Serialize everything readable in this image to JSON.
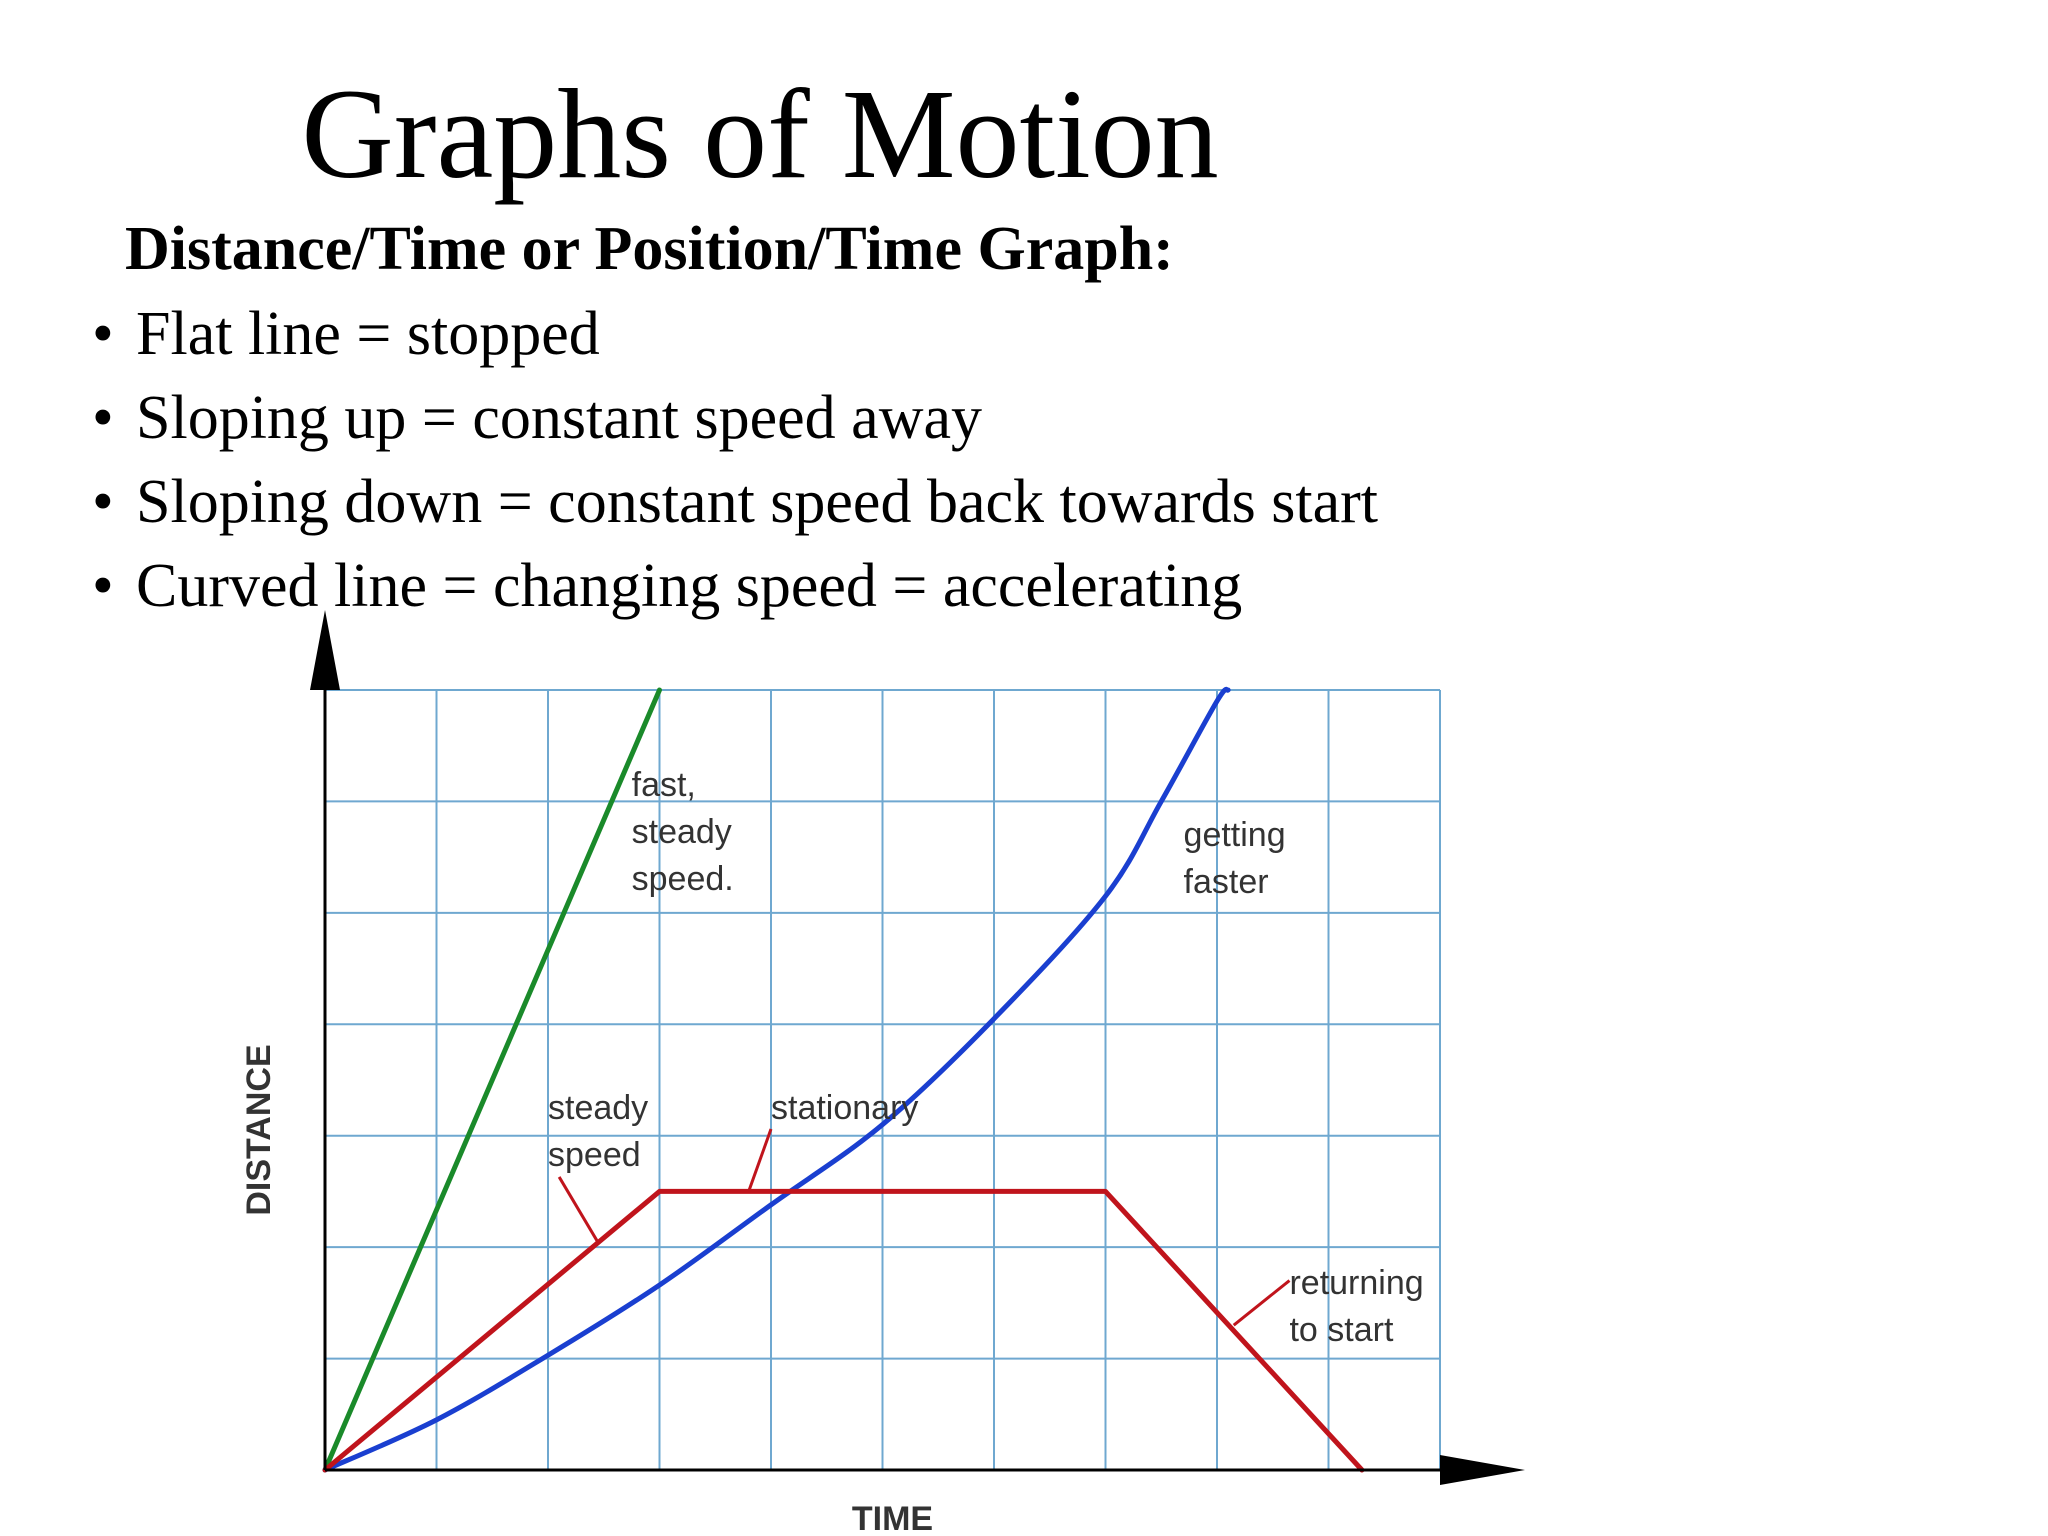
{
  "slide": {
    "title": "Graphs of Motion",
    "subtitle": "Distance/Time or Position/Time Graph:",
    "bullets": [
      "Flat line = stopped",
      "Sloping up = constant speed away",
      "Sloping down = constant speed back towards start",
      "Curved line = changing speed = accelerating"
    ],
    "bullet_glyph": "•"
  },
  "chart_data": {
    "type": "line",
    "xlabel": "TIME",
    "ylabel": "DISTANCE",
    "xlim": [
      0,
      10
    ],
    "ylim": [
      0,
      7
    ],
    "grid": true,
    "grid_color": "#6fa8d0",
    "series": [
      {
        "key": "fast",
        "color": "#1a8a2a",
        "points": [
          [
            0,
            0
          ],
          [
            3,
            7
          ]
        ]
      },
      {
        "key": "curve",
        "color": "#1a3fd0",
        "smooth": true,
        "points": [
          [
            0,
            0
          ],
          [
            1,
            0.45
          ],
          [
            2,
            1.03
          ],
          [
            3,
            1.66
          ],
          [
            4,
            2.38
          ],
          [
            5,
            3.1
          ],
          [
            6,
            4.05
          ],
          [
            7,
            5.15
          ],
          [
            7.5,
            6.0
          ],
          [
            8,
            6.9
          ],
          [
            8.1,
            7.0
          ]
        ]
      },
      {
        "key": "journey",
        "color": "#c0141c",
        "points": [
          [
            0,
            0
          ],
          [
            3,
            2.5
          ],
          [
            7,
            2.5
          ],
          [
            9.3,
            0
          ]
        ]
      }
    ],
    "annotations": [
      {
        "key": "fast",
        "lines": [
          "fast,",
          "steady",
          "speed."
        ],
        "at": [
          2.75,
          6.05
        ],
        "leader": null
      },
      {
        "key": "getting",
        "lines": [
          "getting",
          "faster"
        ],
        "at": [
          7.7,
          5.6
        ],
        "leader": null
      },
      {
        "key": "steady",
        "lines": [
          "steady",
          "speed"
        ],
        "at": [
          2.0,
          3.15
        ],
        "leader": [
          [
            2.1,
            2.63
          ],
          [
            2.45,
            2.04
          ]
        ]
      },
      {
        "key": "stationary",
        "lines": [
          "stationary"
        ],
        "at": [
          4.0,
          3.15
        ],
        "leader": [
          [
            4.0,
            3.06
          ],
          [
            3.8,
            2.5
          ]
        ]
      },
      {
        "key": "returning",
        "lines": [
          "returning",
          "to start"
        ],
        "at": [
          8.65,
          1.58
        ],
        "leader": [
          [
            8.65,
            1.7
          ],
          [
            8.15,
            1.3
          ]
        ]
      }
    ]
  }
}
